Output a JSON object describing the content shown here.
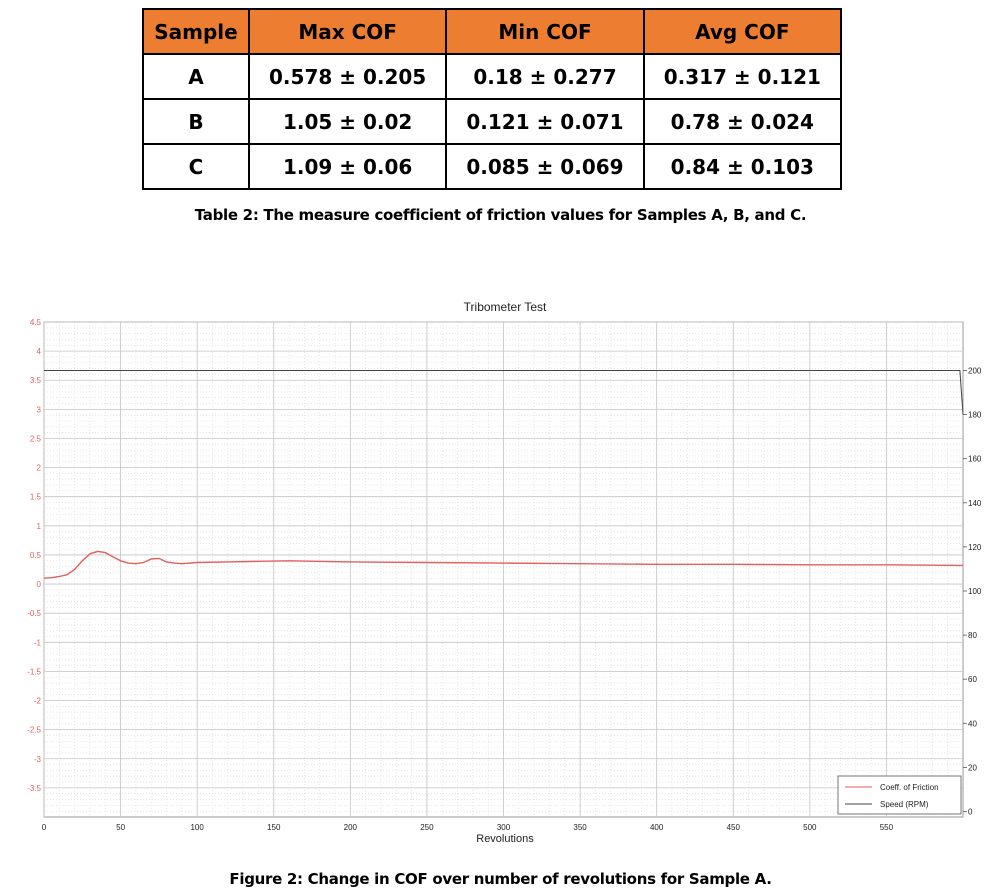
{
  "table": {
    "headers": [
      "Sample",
      "Max COF",
      "Min COF",
      "Avg COF"
    ],
    "rows": [
      [
        "A",
        "0.578 ± 0.205",
        "0.18 ± 0.277",
        "0.317 ± 0.121"
      ],
      [
        "B",
        "1.05 ± 0.02",
        "0.121 ± 0.071",
        "0.78 ± 0.024"
      ],
      [
        "C",
        "1.09 ± 0.06",
        "0.085 ± 0.069",
        "0.84 ± 0.103"
      ]
    ],
    "caption": "Table 2: The measure coefficient of friction values for Samples A, B, and C."
  },
  "figure_caption": "Figure 2: Change in COF over number of revolutions for Sample A.",
  "chart_data": {
    "type": "line",
    "title": "Tribometer Test",
    "xlabel": "Revolutions",
    "ylabel": "",
    "y2label": "",
    "xlim": [
      0,
      600
    ],
    "ylim": [
      -4,
      4.5
    ],
    "y2lim": [
      -2.5,
      222
    ],
    "x_ticks": [
      "0",
      "50",
      "100",
      "150",
      "200",
      "250",
      "300",
      "350",
      "400",
      "450",
      "500",
      "550"
    ],
    "y_ticks": [
      "4.5",
      "4",
      "3.5",
      "3",
      "2.5",
      "2",
      "1.5",
      "1",
      "0.5",
      "0",
      "-0.5",
      "-1",
      "-1.5",
      "-2",
      "-2.5",
      "-3",
      "-3.5"
    ],
    "y2_ticks": [
      "200",
      "180",
      "160",
      "140",
      "120",
      "100",
      "80",
      "60",
      "40",
      "20",
      "0"
    ],
    "grid": true,
    "legend_position": "bottom-right",
    "series": [
      {
        "name": "Coeff. of Friction",
        "axis": "left",
        "color": "#e06060",
        "x": [
          0,
          5,
          10,
          15,
          20,
          25,
          30,
          35,
          40,
          45,
          50,
          55,
          60,
          65,
          70,
          75,
          80,
          85,
          90,
          100,
          120,
          140,
          160,
          200,
          250,
          300,
          350,
          400,
          450,
          500,
          550,
          600
        ],
        "y": [
          0.1,
          0.11,
          0.13,
          0.16,
          0.25,
          0.4,
          0.52,
          0.56,
          0.54,
          0.47,
          0.4,
          0.36,
          0.35,
          0.37,
          0.43,
          0.44,
          0.38,
          0.36,
          0.35,
          0.37,
          0.38,
          0.39,
          0.4,
          0.38,
          0.37,
          0.36,
          0.35,
          0.34,
          0.34,
          0.33,
          0.33,
          0.32
        ]
      },
      {
        "name": "Speed (RPM)",
        "axis": "right",
        "color": "#444444",
        "x": [
          0,
          598,
          600
        ],
        "y": [
          200,
          200,
          180
        ]
      }
    ]
  }
}
